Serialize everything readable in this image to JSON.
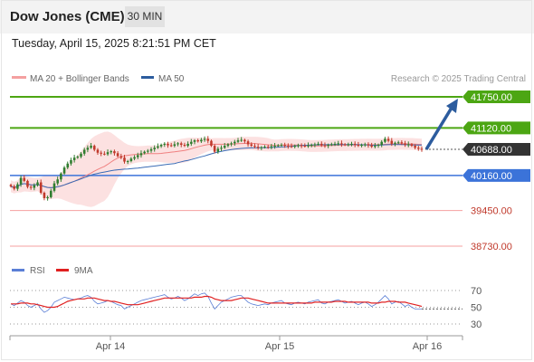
{
  "header": {
    "title": "Dow Jones (CME)",
    "timeframe": "30 MIN",
    "datetime": "Tuesday, April 15, 2025 8:21:51 PM CET"
  },
  "legend": {
    "ma20": "MA 20 + Bollinger Bands",
    "ma50": "MA 50",
    "credit": "Research © 2025 Trading Central"
  },
  "rsi_legend": {
    "rsi": "RSI",
    "ma9": "9MA"
  },
  "colors": {
    "resistance": "#4ca613",
    "support": "#3b73d9",
    "target_line": "#f4a0a0",
    "target_text": "#c0392b",
    "current": "#333333",
    "arrow": "#2c5c9e",
    "candle_up": "#2f7d2f",
    "candle_down": "#c0392b",
    "bb_fill": "#fbdada",
    "ma20": "#f08080",
    "ma50": "#3a6bb5",
    "rsi": "#5b7fd6",
    "rsi_ma": "#e02020"
  },
  "chart_data": [
    {
      "type": "candlestick",
      "title": "Dow Jones (CME)",
      "ylim": [
        38600,
        41900
      ],
      "x_ticks": [
        "Apr 14",
        "Apr 15",
        "Apr 16"
      ],
      "levels": [
        {
          "value": 41750,
          "label": "41750.00",
          "kind": "resistance"
        },
        {
          "value": 41120,
          "label": "41120.00",
          "kind": "resistance"
        },
        {
          "value": 40688,
          "label": "40688.00",
          "kind": "current"
        },
        {
          "value": 40160,
          "label": "40160.00",
          "kind": "support"
        },
        {
          "value": 39450,
          "label": "39450.00",
          "kind": "target"
        },
        {
          "value": 38730,
          "label": "38730.00",
          "kind": "target"
        }
      ],
      "arrow": {
        "from": 40688,
        "to": 41750,
        "direction": "up"
      },
      "close": [
        39940,
        39890,
        39980,
        40110,
        40050,
        39930,
        39910,
        39960,
        40020,
        39810,
        39700,
        39720,
        39850,
        40000,
        40080,
        40200,
        40320,
        40400,
        40470,
        40520,
        40540,
        40600,
        40680,
        40720,
        40760,
        40680,
        40620,
        40600,
        40590,
        40630,
        40650,
        40610,
        40550,
        40520,
        40440,
        40450,
        40500,
        40530,
        40570,
        40610,
        40640,
        40660,
        40690,
        40720,
        40750,
        40780,
        40800,
        40770,
        40760,
        40790,
        40810,
        40780,
        40760,
        40800,
        40840,
        40870,
        40850,
        40880,
        40900,
        40860,
        40760,
        40640,
        40700,
        40720,
        40760,
        40790,
        40810,
        40840,
        40870,
        40880,
        40850,
        40790,
        40760,
        40740,
        40720,
        40730,
        40740,
        40730,
        40750,
        40760,
        40770,
        40780,
        40760,
        40750,
        40740,
        40760,
        40770,
        40760,
        40750,
        40770,
        40780,
        40790,
        40800,
        40770,
        40760,
        40780,
        40790,
        40800,
        40810,
        40790,
        40780,
        40790,
        40800,
        40780,
        40760,
        40780,
        40790,
        40770,
        40740,
        40760,
        40780,
        40840,
        40900,
        40860,
        40800,
        40820,
        40830,
        40810,
        40780,
        40790,
        40760,
        40720,
        40700,
        40688
      ],
      "ma20_approx": "follows price",
      "ma50_approx": "lagging below price"
    },
    {
      "type": "line",
      "title": "RSI",
      "ylim": [
        20,
        80
      ],
      "y_ticks": [
        70,
        50,
        30
      ],
      "series": [
        {
          "name": "RSI",
          "values": [
            54,
            52,
            55,
            58,
            56,
            52,
            50,
            52,
            54,
            48,
            44,
            46,
            50,
            56,
            58,
            60,
            62,
            61,
            60,
            59,
            60,
            61,
            63,
            64,
            62,
            57,
            54,
            55,
            56,
            58,
            57,
            55,
            53,
            52,
            48,
            50,
            52,
            54,
            56,
            58,
            59,
            60,
            61,
            62,
            63,
            64,
            65,
            62,
            60,
            61,
            63,
            61,
            58,
            60,
            63,
            66,
            64,
            66,
            67,
            63,
            55,
            48,
            52,
            56,
            58,
            60,
            62,
            63,
            64,
            64,
            60,
            56,
            54,
            53,
            52,
            53,
            54,
            53,
            55,
            56,
            57,
            58,
            55,
            54,
            53,
            55,
            56,
            55,
            54,
            56,
            57,
            58,
            59,
            55,
            54,
            56,
            57,
            58,
            59,
            57,
            55,
            56,
            57,
            55,
            53,
            55,
            56,
            54,
            51,
            53,
            56,
            60,
            64,
            60,
            54,
            56,
            57,
            54,
            51,
            53,
            50,
            48,
            48,
            48
          ]
        },
        {
          "name": "9MA",
          "values": [
            54,
            54,
            54,
            55,
            55,
            55,
            54,
            54,
            53,
            52,
            51,
            50,
            50,
            50,
            51,
            53,
            55,
            57,
            58,
            59,
            60,
            60,
            60,
            61,
            61,
            61,
            60,
            59,
            58,
            58,
            57,
            57,
            56,
            55,
            54,
            53,
            53,
            53,
            53,
            54,
            55,
            56,
            57,
            58,
            59,
            60,
            61,
            61,
            61,
            61,
            61,
            61,
            61,
            61,
            61,
            62,
            62,
            62,
            63,
            63,
            62,
            60,
            59,
            58,
            58,
            58,
            58,
            59,
            60,
            61,
            61,
            61,
            60,
            59,
            58,
            57,
            56,
            55,
            55,
            55,
            55,
            55,
            55,
            55,
            55,
            55,
            55,
            55,
            55,
            55,
            55,
            56,
            56,
            56,
            56,
            56,
            56,
            57,
            57,
            57,
            57,
            56,
            56,
            56,
            56,
            56,
            56,
            56,
            55,
            55,
            55,
            56,
            56,
            57,
            57,
            57,
            56,
            56,
            56,
            55,
            54,
            53,
            52,
            51
          ]
        }
      ]
    }
  ]
}
